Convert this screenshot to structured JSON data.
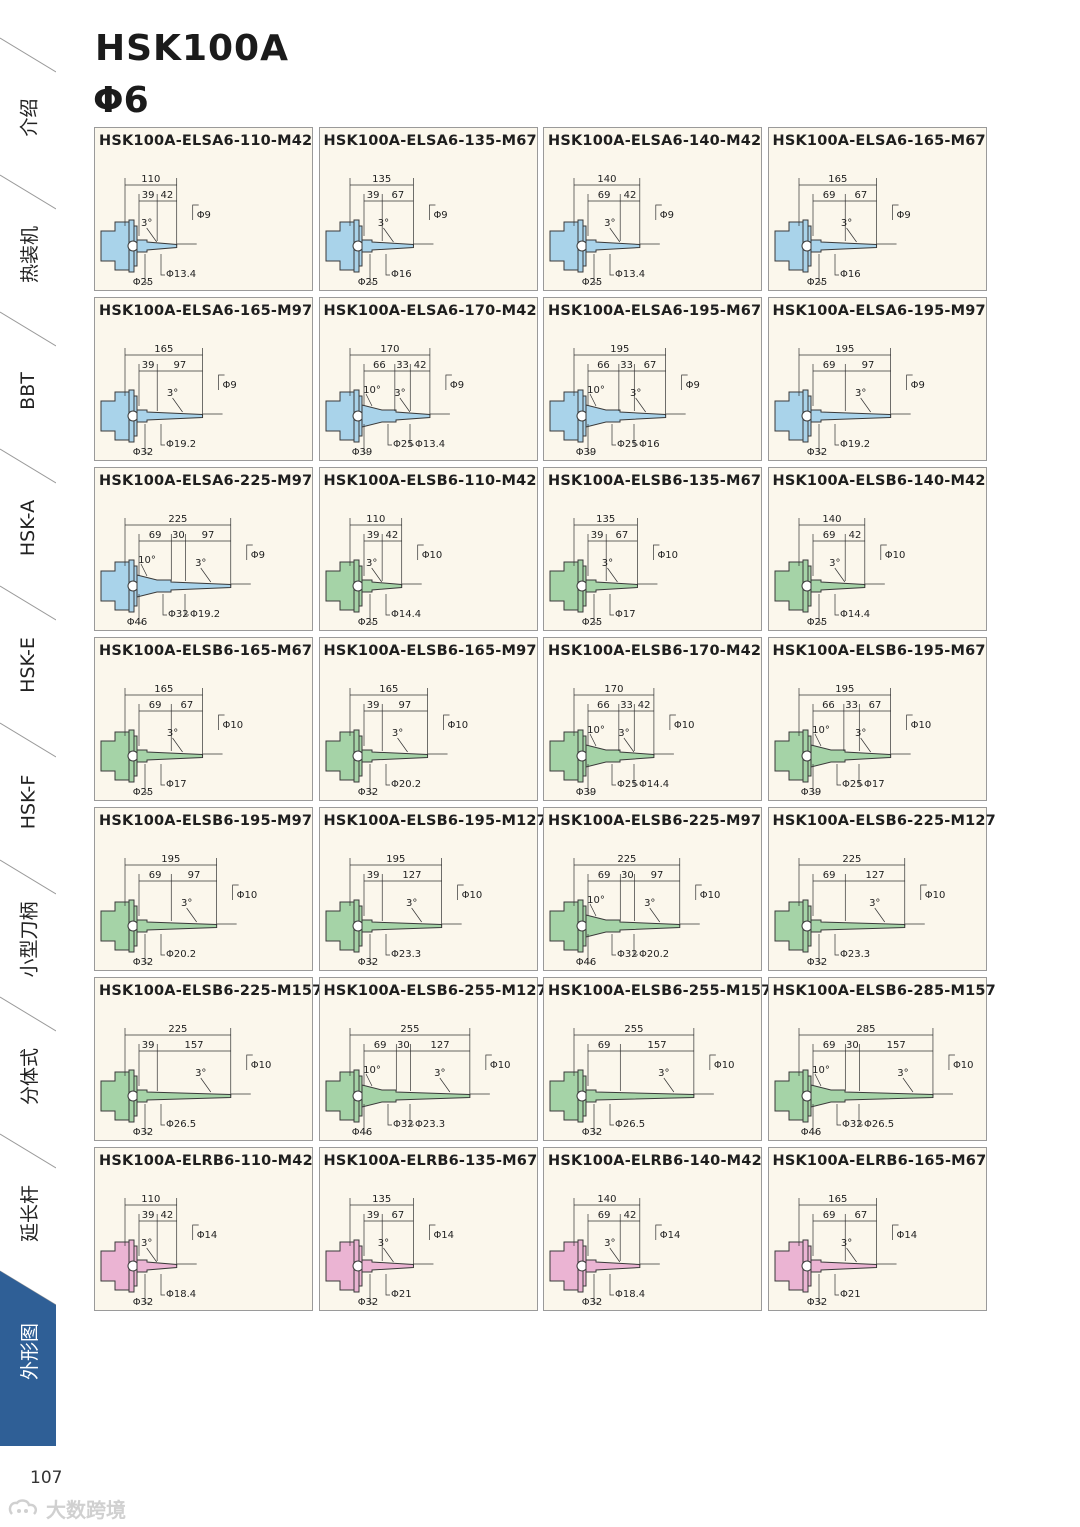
{
  "sidebar": {
    "items": [
      {
        "label": "介绍"
      },
      {
        "label": "热装机"
      },
      {
        "label": "BBT"
      },
      {
        "label": "HSK-A"
      },
      {
        "label": "HSK-E"
      },
      {
        "label": "HSK-F"
      },
      {
        "label": "小型刀柄"
      },
      {
        "label": "分体式"
      },
      {
        "label": "延长杆"
      },
      {
        "label": "外形图"
      }
    ],
    "active_index": 9,
    "active_color": "#2f5f96"
  },
  "header": {
    "title": "HSK100A",
    "subtitle": "Φ6"
  },
  "page_number": "107",
  "watermark": "大数跨境",
  "colors": {
    "blue": "#a9d3ea",
    "green": "#a5d3a7",
    "pink": "#ebb4d3",
    "card_bg": "#fbf7ec"
  },
  "cards": [
    {
      "code": "HSK100A-ELSA6-110-M42",
      "color": "blue",
      "total": "110",
      "segs": [
        "39",
        "42"
      ],
      "angles": [
        "3°"
      ],
      "tip": "Φ9",
      "bot": [
        "Φ25",
        "Φ13.4"
      ]
    },
    {
      "code": "HSK100A-ELSA6-135-M67",
      "color": "blue",
      "total": "135",
      "segs": [
        "39",
        "67"
      ],
      "angles": [
        "3°"
      ],
      "tip": "Φ9",
      "bot": [
        "Φ25",
        "Φ16"
      ]
    },
    {
      "code": "HSK100A-ELSA6-140-M42",
      "color": "blue",
      "total": "140",
      "segs": [
        "69",
        "42"
      ],
      "angles": [
        "3°"
      ],
      "tip": "Φ9",
      "bot": [
        "Φ25",
        "Φ13.4"
      ]
    },
    {
      "code": "HSK100A-ELSA6-165-M67",
      "color": "blue",
      "total": "165",
      "segs": [
        "69",
        "67"
      ],
      "angles": [
        "3°"
      ],
      "tip": "Φ9",
      "bot": [
        "Φ25",
        "Φ16"
      ]
    },
    {
      "code": "HSK100A-ELSA6-165-M97",
      "color": "blue",
      "total": "165",
      "segs": [
        "39",
        "97"
      ],
      "angles": [
        "3°"
      ],
      "tip": "Φ9",
      "bot": [
        "Φ32",
        "Φ19.2"
      ]
    },
    {
      "code": "HSK100A-ELSA6-170-M42",
      "color": "blue",
      "total": "170",
      "segs": [
        "66",
        "33",
        "42"
      ],
      "angles": [
        "10°",
        "3°"
      ],
      "tip": "Φ9",
      "bot": [
        "Φ39",
        "Φ25",
        "Φ13.4"
      ]
    },
    {
      "code": "HSK100A-ELSA6-195-M67",
      "color": "blue",
      "total": "195",
      "segs": [
        "66",
        "33",
        "67"
      ],
      "angles": [
        "10°",
        "3°"
      ],
      "tip": "Φ9",
      "bot": [
        "Φ39",
        "Φ25",
        "Φ16"
      ]
    },
    {
      "code": "HSK100A-ELSA6-195-M97",
      "color": "blue",
      "total": "195",
      "segs": [
        "69",
        "97"
      ],
      "angles": [
        "3°"
      ],
      "tip": "Φ9",
      "bot": [
        "Φ32",
        "Φ19.2"
      ]
    },
    {
      "code": "HSK100A-ELSA6-225-M97",
      "color": "blue",
      "total": "225",
      "segs": [
        "69",
        "30",
        "97"
      ],
      "angles": [
        "10°",
        "3°"
      ],
      "tip": "Φ9",
      "bot": [
        "Φ46",
        "Φ32",
        "Φ19.2"
      ]
    },
    {
      "code": "HSK100A-ELSB6-110-M42",
      "color": "green",
      "total": "110",
      "segs": [
        "39",
        "42"
      ],
      "angles": [
        "3°"
      ],
      "tip": "Φ10",
      "bot": [
        "Φ25",
        "Φ14.4"
      ]
    },
    {
      "code": "HSK100A-ELSB6-135-M67",
      "color": "green",
      "total": "135",
      "segs": [
        "39",
        "67"
      ],
      "angles": [
        "3°"
      ],
      "tip": "Φ10",
      "bot": [
        "Φ25",
        "Φ17"
      ]
    },
    {
      "code": "HSK100A-ELSB6-140-M42",
      "color": "green",
      "total": "140",
      "segs": [
        "69",
        "42"
      ],
      "angles": [
        "3°"
      ],
      "tip": "Φ10",
      "bot": [
        "Φ25",
        "Φ14.4"
      ]
    },
    {
      "code": "HSK100A-ELSB6-165-M67",
      "color": "green",
      "total": "165",
      "segs": [
        "69",
        "67"
      ],
      "angles": [
        "3°"
      ],
      "tip": "Φ10",
      "bot": [
        "Φ25",
        "Φ17"
      ]
    },
    {
      "code": "HSK100A-ELSB6-165-M97",
      "color": "green",
      "total": "165",
      "segs": [
        "39",
        "97"
      ],
      "angles": [
        "3°"
      ],
      "tip": "Φ10",
      "bot": [
        "Φ32",
        "Φ20.2"
      ]
    },
    {
      "code": "HSK100A-ELSB6-170-M42",
      "color": "green",
      "total": "170",
      "segs": [
        "66",
        "33",
        "42"
      ],
      "angles": [
        "10°",
        "3°"
      ],
      "tip": "Φ10",
      "bot": [
        "Φ39",
        "Φ25",
        "Φ14.4"
      ]
    },
    {
      "code": "HSK100A-ELSB6-195-M67",
      "color": "green",
      "total": "195",
      "segs": [
        "66",
        "33",
        "67"
      ],
      "angles": [
        "10°",
        "3°"
      ],
      "tip": "Φ10",
      "bot": [
        "Φ39",
        "Φ25",
        "Φ17"
      ]
    },
    {
      "code": "HSK100A-ELSB6-195-M97",
      "color": "green",
      "total": "195",
      "segs": [
        "69",
        "97"
      ],
      "angles": [
        "3°"
      ],
      "tip": "Φ10",
      "bot": [
        "Φ32",
        "Φ20.2"
      ]
    },
    {
      "code": "HSK100A-ELSB6-195-M127",
      "color": "green",
      "total": "195",
      "segs": [
        "39",
        "127"
      ],
      "angles": [
        "3°"
      ],
      "tip": "Φ10",
      "bot": [
        "Φ32",
        "Φ23.3"
      ]
    },
    {
      "code": "HSK100A-ELSB6-225-M97",
      "color": "green",
      "total": "225",
      "segs": [
        "69",
        "30",
        "97"
      ],
      "angles": [
        "10°",
        "3°"
      ],
      "tip": "Φ10",
      "bot": [
        "Φ46",
        "Φ32",
        "Φ20.2"
      ]
    },
    {
      "code": "HSK100A-ELSB6-225-M127",
      "color": "green",
      "total": "225",
      "segs": [
        "69",
        "127"
      ],
      "angles": [
        "3°"
      ],
      "tip": "Φ10",
      "bot": [
        "Φ32",
        "Φ23.3"
      ]
    },
    {
      "code": "HSK100A-ELSB6-225-M157",
      "color": "green",
      "total": "225",
      "segs": [
        "39",
        "157"
      ],
      "angles": [
        "3°"
      ],
      "tip": "Φ10",
      "bot": [
        "Φ32",
        "Φ26.5"
      ]
    },
    {
      "code": "HSK100A-ELSB6-255-M127",
      "color": "green",
      "total": "255",
      "segs": [
        "69",
        "30",
        "127"
      ],
      "angles": [
        "10°",
        "3°"
      ],
      "tip": "Φ10",
      "bot": [
        "Φ46",
        "Φ32",
        "Φ23.3"
      ]
    },
    {
      "code": "HSK100A-ELSB6-255-M157",
      "color": "green",
      "total": "255",
      "segs": [
        "69",
        "157"
      ],
      "angles": [
        "3°"
      ],
      "tip": "Φ10",
      "bot": [
        "Φ32",
        "Φ26.5"
      ]
    },
    {
      "code": "HSK100A-ELSB6-285-M157",
      "color": "green",
      "total": "285",
      "segs": [
        "69",
        "30",
        "157"
      ],
      "angles": [
        "10°",
        "3°"
      ],
      "tip": "Φ10",
      "bot": [
        "Φ46",
        "Φ32",
        "Φ26.5"
      ]
    },
    {
      "code": "HSK100A-ELRB6-110-M42",
      "color": "pink",
      "total": "110",
      "segs": [
        "39",
        "42"
      ],
      "angles": [
        "3°"
      ],
      "tip": "Φ14",
      "bot": [
        "Φ32",
        "Φ18.4"
      ]
    },
    {
      "code": "HSK100A-ELRB6-135-M67",
      "color": "pink",
      "total": "135",
      "segs": [
        "39",
        "67"
      ],
      "angles": [
        "3°"
      ],
      "tip": "Φ14",
      "bot": [
        "Φ32",
        "Φ21"
      ]
    },
    {
      "code": "HSK100A-ELRB6-140-M42",
      "color": "pink",
      "total": "140",
      "segs": [
        "69",
        "42"
      ],
      "angles": [
        "3°"
      ],
      "tip": "Φ14",
      "bot": [
        "Φ32",
        "Φ18.4"
      ]
    },
    {
      "code": "HSK100A-ELRB6-165-M67",
      "color": "pink",
      "total": "165",
      "segs": [
        "69",
        "67"
      ],
      "angles": [
        "3°"
      ],
      "tip": "Φ14",
      "bot": [
        "Φ32",
        "Φ21"
      ]
    }
  ]
}
